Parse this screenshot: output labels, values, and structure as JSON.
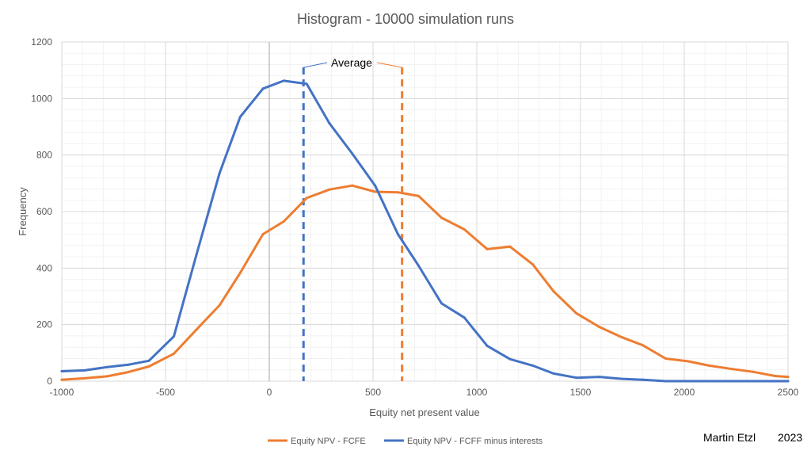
{
  "chart_data": {
    "type": "line",
    "title": "Histogram - 10000 simulation runs",
    "xlabel": "Equity net present value",
    "ylabel": "Frequency",
    "xlim": [
      -1000,
      2500
    ],
    "ylim": [
      0,
      1200
    ],
    "x_major_ticks": [
      -1000,
      -500,
      0,
      500,
      1000,
      1500,
      2000,
      2500
    ],
    "y_major_ticks": [
      0,
      200,
      400,
      600,
      800,
      1000,
      1200
    ],
    "x_minor_step": 100,
    "y_minor_step": 40,
    "grid": true,
    "legend_position": "bottom",
    "series": [
      {
        "name": "Equity NPV - FCFE",
        "color": "#ED7D31",
        "x": [
          -1000,
          -890,
          -780,
          -680,
          -580,
          -460,
          -350,
          -240,
          -140,
          -30,
          70,
          180,
          290,
          400,
          510,
          620,
          720,
          830,
          940,
          1050,
          1160,
          1270,
          1370,
          1480,
          1590,
          1700,
          1800,
          1910,
          2020,
          2120,
          2230,
          2330,
          2440,
          2500
        ],
        "y": [
          5,
          10,
          17,
          32,
          52,
          97,
          183,
          268,
          383,
          520,
          565,
          648,
          678,
          692,
          670,
          668,
          655,
          578,
          537,
          467,
          476,
          413,
          318,
          240,
          192,
          155,
          127,
          80,
          70,
          55,
          43,
          33,
          18,
          15
        ]
      },
      {
        "name": "Equity NPV - FCFF minus interests",
        "color": "#4472C4",
        "x": [
          -1000,
          -890,
          -780,
          -680,
          -580,
          -460,
          -350,
          -240,
          -140,
          -30,
          70,
          180,
          290,
          400,
          510,
          620,
          720,
          830,
          940,
          1050,
          1160,
          1270,
          1370,
          1480,
          1590,
          1700,
          1800,
          1910,
          2020,
          2120,
          2230,
          2330,
          2440,
          2500
        ],
        "y": [
          35,
          38,
          50,
          58,
          72,
          158,
          450,
          735,
          935,
          1035,
          1063,
          1052,
          912,
          805,
          692,
          520,
          408,
          275,
          225,
          125,
          78,
          55,
          27,
          12,
          15,
          8,
          5,
          0,
          0,
          0,
          0,
          0,
          0,
          0
        ]
      }
    ],
    "average_lines": [
      {
        "series": "Equity NPV - FCFF minus interests",
        "x": 165,
        "color": "#4472C4"
      },
      {
        "series": "Equity NPV - FCFE",
        "x": 640,
        "color": "#ED7D31"
      }
    ],
    "annotation": "Average"
  },
  "credit": {
    "author": "Martin Etzl",
    "year": "2023"
  }
}
